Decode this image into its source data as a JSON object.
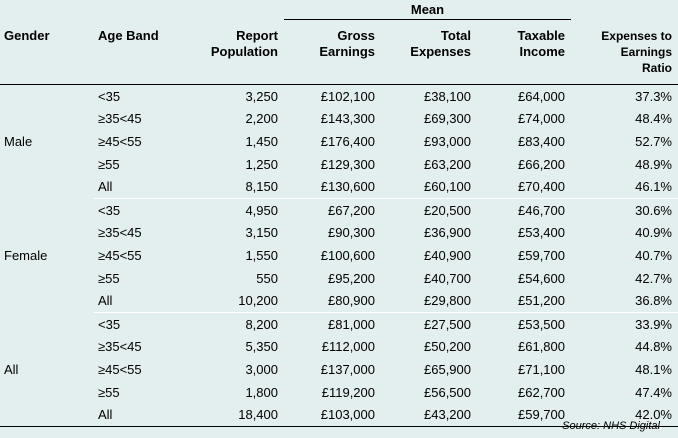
{
  "header": {
    "mean": "Mean",
    "gender": "Gender",
    "age_band": "Age Band",
    "report_population": [
      "Report",
      "Population"
    ],
    "gross_earnings": [
      "Gross",
      "Earnings"
    ],
    "total_expenses": [
      "Total",
      "Expenses"
    ],
    "taxable_income": [
      "Taxable",
      "Income"
    ],
    "ratio": [
      "Expenses to",
      "Earnings",
      "Ratio"
    ]
  },
  "groups": [
    {
      "gender": "Male",
      "rows": [
        {
          "age": "<35",
          "pop": "3,250",
          "gross": "£102,100",
          "expenses": "£38,100",
          "taxable": "£64,000",
          "ratio": "37.3%"
        },
        {
          "age": "≥35<45",
          "pop": "2,200",
          "gross": "£143,300",
          "expenses": "£69,300",
          "taxable": "£74,000",
          "ratio": "48.4%"
        },
        {
          "age": "≥45<55",
          "pop": "1,450",
          "gross": "£176,400",
          "expenses": "£93,000",
          "taxable": "£83,400",
          "ratio": "52.7%"
        },
        {
          "age": "≥55",
          "pop": "1,250",
          "gross": "£129,300",
          "expenses": "£63,200",
          "taxable": "£66,200",
          "ratio": "48.9%"
        },
        {
          "age": "All",
          "pop": "8,150",
          "gross": "£130,600",
          "expenses": "£60,100",
          "taxable": "£70,400",
          "ratio": "46.1%"
        }
      ]
    },
    {
      "gender": "Female",
      "rows": [
        {
          "age": "<35",
          "pop": "4,950",
          "gross": "£67,200",
          "expenses": "£20,500",
          "taxable": "£46,700",
          "ratio": "30.6%"
        },
        {
          "age": "≥35<45",
          "pop": "3,150",
          "gross": "£90,300",
          "expenses": "£36,900",
          "taxable": "£53,400",
          "ratio": "40.9%"
        },
        {
          "age": "≥45<55",
          "pop": "1,550",
          "gross": "£100,600",
          "expenses": "£40,900",
          "taxable": "£59,700",
          "ratio": "40.7%"
        },
        {
          "age": "≥55",
          "pop": "550",
          "gross": "£95,200",
          "expenses": "£40,700",
          "taxable": "£54,600",
          "ratio": "42.7%"
        },
        {
          "age": "All",
          "pop": "10,200",
          "gross": "£80,900",
          "expenses": "£29,800",
          "taxable": "£51,200",
          "ratio": "36.8%"
        }
      ]
    },
    {
      "gender": "All",
      "rows": [
        {
          "age": "<35",
          "pop": "8,200",
          "gross": "£81,000",
          "expenses": "£27,500",
          "taxable": "£53,500",
          "ratio": "33.9%"
        },
        {
          "age": "≥35<45",
          "pop": "5,350",
          "gross": "£112,000",
          "expenses": "£50,200",
          "taxable": "£61,800",
          "ratio": "44.8%"
        },
        {
          "age": "≥45<55",
          "pop": "3,000",
          "gross": "£137,000",
          "expenses": "£65,900",
          "taxable": "£71,100",
          "ratio": "48.1%"
        },
        {
          "age": "≥55",
          "pop": "1,800",
          "gross": "£119,200",
          "expenses": "£56,500",
          "taxable": "£62,700",
          "ratio": "47.4%"
        },
        {
          "age": "All",
          "pop": "18,400",
          "gross": "£103,000",
          "expenses": "£43,200",
          "taxable": "£59,700",
          "ratio": "42.0%"
        }
      ]
    }
  ],
  "source": "Source: NHS Digital"
}
